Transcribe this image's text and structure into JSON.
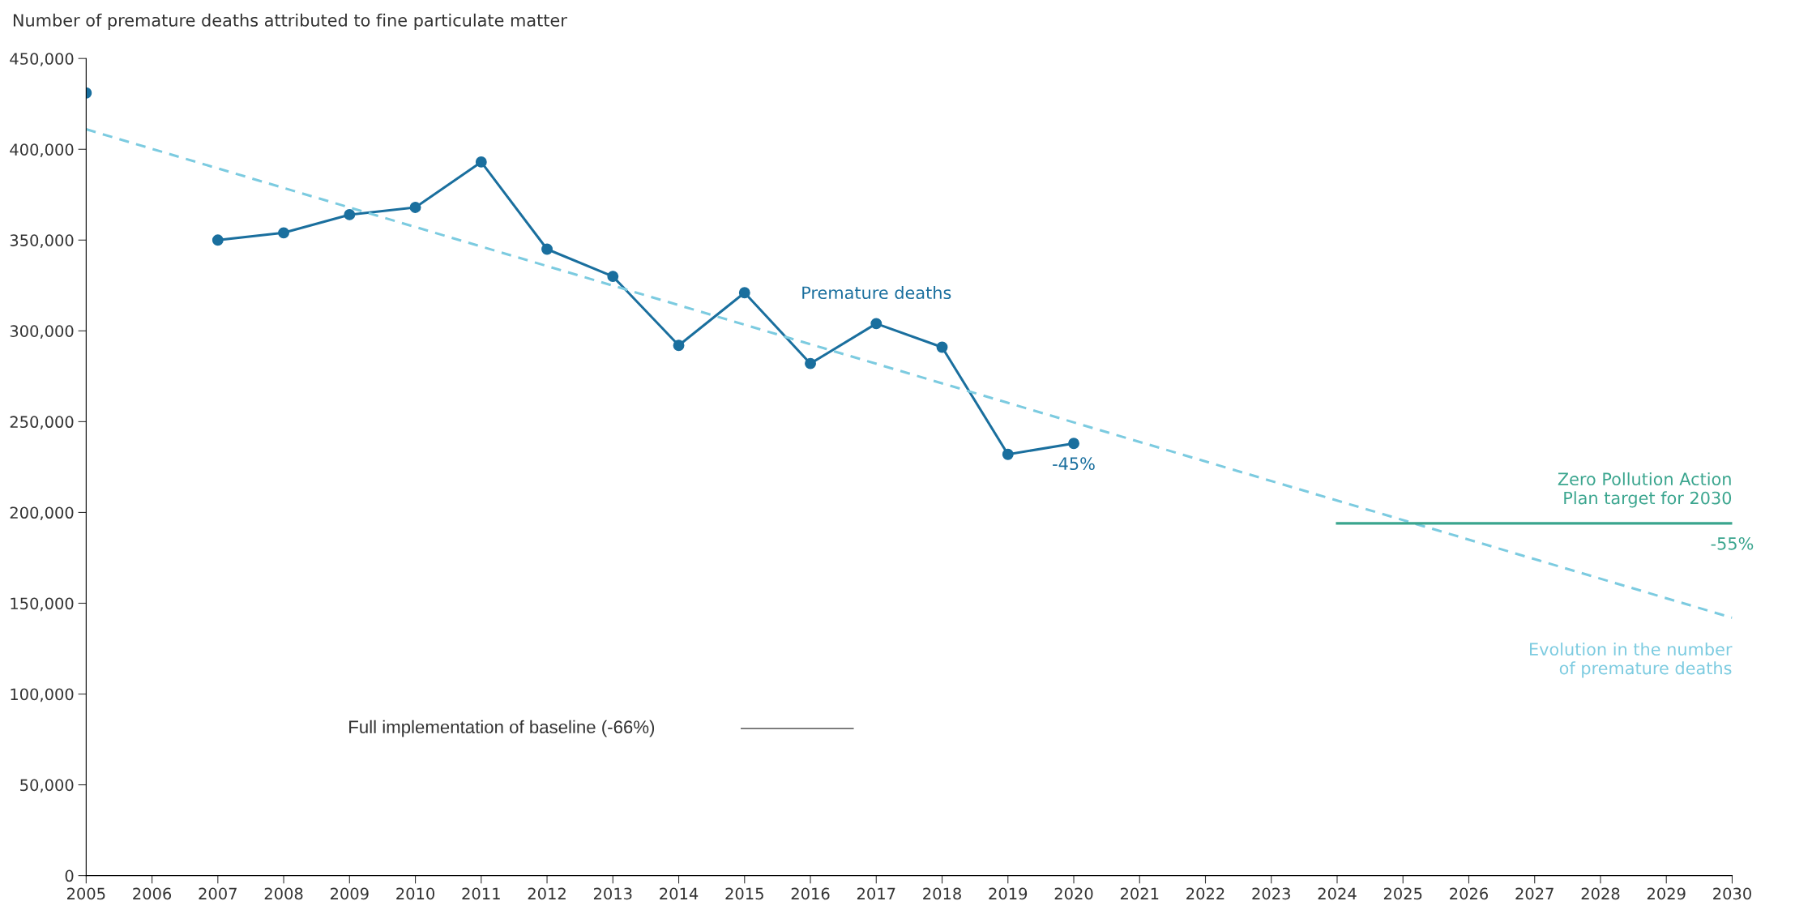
{
  "chart_data": {
    "type": "line",
    "ylabel": "Number of premature deaths attributed to fine particulate matter",
    "x": [
      2005,
      2006,
      2007,
      2008,
      2009,
      2010,
      2011,
      2012,
      2013,
      2014,
      2015,
      2016,
      2017,
      2018,
      2019,
      2020
    ],
    "series": [
      {
        "name": "Premature deaths",
        "color": "#1a6f9e",
        "marker": "circle",
        "line_style": "solid",
        "values": [
          431000,
          null,
          350000,
          354000,
          364000,
          368000,
          393000,
          345000,
          330000,
          292000,
          321000,
          282000,
          304000,
          291000,
          232000,
          238000
        ]
      },
      {
        "name": "Evolution in the number\nof premature deaths",
        "color": "#7ccbe0",
        "marker": "none",
        "line_style": "dashed",
        "x": [
          2005,
          2030
        ],
        "values": [
          411000,
          142000
        ]
      },
      {
        "name": "Zero Pollution Action\nPlan target for 2030",
        "color": "#3aa58e",
        "marker": "none",
        "line_style": "solid",
        "x": [
          2024,
          2030
        ],
        "values": [
          194000,
          194000
        ]
      }
    ],
    "annotations": [
      {
        "text": "-45%",
        "x": 2020,
        "y": 238000
      },
      {
        "text": "-55%",
        "x": 2030,
        "y": 194000
      },
      "Full implementation of baseline (-66%)"
    ],
    "xlim": [
      2005,
      2030
    ],
    "xticks": [
      2005,
      2006,
      2007,
      2008,
      2009,
      2010,
      2011,
      2012,
      2013,
      2014,
      2015,
      2016,
      2017,
      2018,
      2019,
      2020,
      2021,
      2022,
      2023,
      2024,
      2025,
      2026,
      2027,
      2028,
      2029,
      2030
    ],
    "ylim": [
      0,
      450000
    ],
    "yticks": [
      {
        "value": 0,
        "label": "0"
      },
      {
        "value": 50000,
        "label": "50,000"
      },
      {
        "value": 100000,
        "label": "100,000"
      },
      {
        "value": 150000,
        "label": "150,000"
      },
      {
        "value": 200000,
        "label": "200,000"
      },
      {
        "value": 250000,
        "label": "250,000"
      },
      {
        "value": 300000,
        "label": "300,000"
      },
      {
        "value": 350000,
        "label": "350,000"
      },
      {
        "value": 400000,
        "label": "400,000"
      },
      {
        "value": 450000,
        "label": "450,000"
      }
    ],
    "grid": false,
    "legend": false
  }
}
